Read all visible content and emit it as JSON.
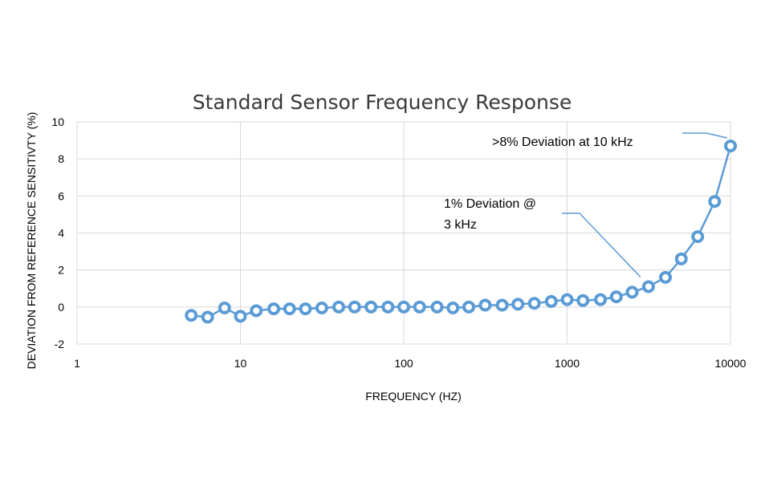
{
  "chart_data": {
    "type": "scatter",
    "title": "Standard Sensor Frequency Response",
    "xlabel": "FREQUENCY (HZ)",
    "ylabel": "DEVIATION FROM REFERENCE SENSITIVTY (%)",
    "xscale": "log",
    "xlim": [
      1,
      10000
    ],
    "ylim": [
      -2,
      10
    ],
    "xticks": [
      "1",
      "10",
      "100",
      "1000",
      "10000"
    ],
    "xtick_values": [
      1,
      10,
      100,
      1000,
      10000
    ],
    "yticks": [
      "-2",
      "0",
      "2",
      "4",
      "6",
      "8",
      "10"
    ],
    "ytick_values": [
      -2,
      0,
      2,
      4,
      6,
      8,
      10
    ],
    "grid": true,
    "series_color": "#5b9bd5",
    "series": [
      {
        "x": [
          5,
          6.3,
          8,
          10,
          12.5,
          16,
          20,
          25,
          31.5,
          40,
          50,
          63,
          80,
          100,
          125,
          160,
          200,
          250,
          315,
          400,
          500,
          630,
          800,
          1000,
          1250,
          1600,
          2000,
          2500,
          3150,
          4000,
          5000,
          6300,
          8000,
          10000
        ],
        "y": [
          -0.45,
          -0.55,
          -0.05,
          -0.5,
          -0.2,
          -0.1,
          -0.1,
          -0.1,
          -0.05,
          0,
          0,
          0,
          0,
          0,
          0,
          0,
          -0.05,
          0,
          0.1,
          0.1,
          0.15,
          0.2,
          0.3,
          0.4,
          0.35,
          0.4,
          0.55,
          0.8,
          1.1,
          1.6,
          2.6,
          3.8,
          5.7,
          8.7
        ]
      }
    ],
    "annotations": [
      {
        "text_lines": [
          "1% Deviation @",
          "3 kHz"
        ],
        "points_to": [
          3150,
          1.1
        ]
      },
      {
        "text_lines": [
          ">8% Deviation at 10 kHz"
        ],
        "points_to": [
          10000,
          8.7
        ]
      }
    ]
  }
}
